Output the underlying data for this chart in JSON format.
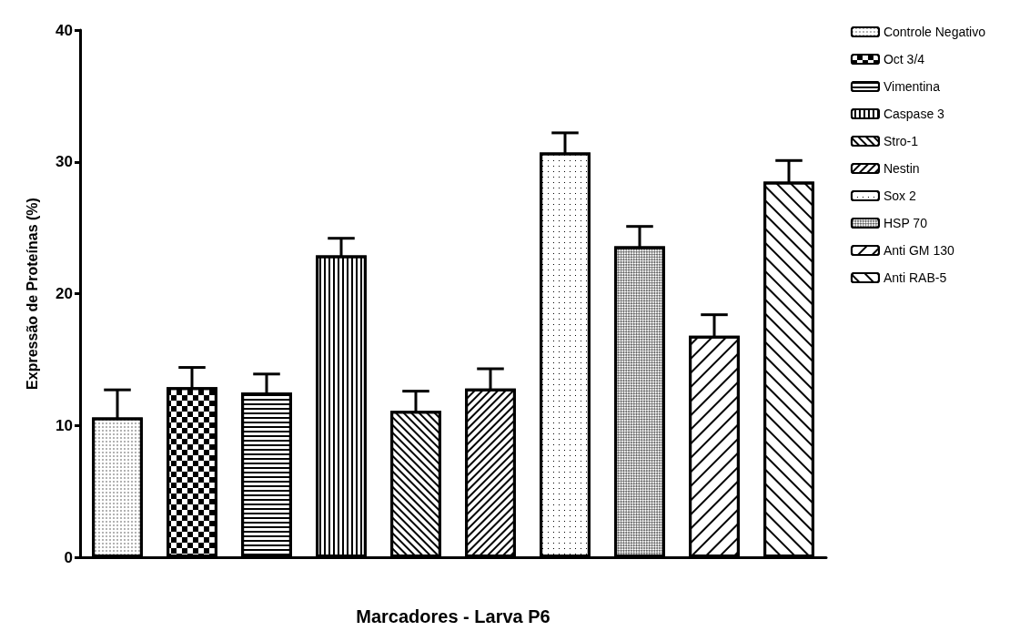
{
  "chart_data": {
    "type": "bar",
    "xlabel": "Marcadores - Larva P6",
    "ylabel": "Expressão de Proteínas (%)",
    "categories": [
      null,
      null,
      null,
      null,
      null,
      null,
      null,
      null,
      null,
      null
    ],
    "ylim": [
      0,
      40
    ],
    "yticks": [
      0,
      10,
      20,
      30,
      40
    ],
    "grid": false,
    "legend": "top right",
    "tick_labels": "y",
    "series": [
      {
        "name": "Controle Negativo",
        "color": "#ffffff",
        "values": [
          10.6,
          null,
          null,
          null,
          null,
          null,
          null,
          null,
          null,
          null
        ],
        "errors": [
          2.1,
          null,
          null,
          null,
          null,
          null,
          null,
          null,
          null,
          null
        ]
      },
      {
        "name": "Oct 3/4",
        "color": "#ffffff",
        "values": [
          null,
          12.9,
          null,
          null,
          null,
          null,
          null,
          null,
          null,
          null
        ],
        "errors": [
          null,
          1.5,
          null,
          null,
          null,
          null,
          null,
          null,
          null,
          null
        ]
      },
      {
        "name": "Vimentina",
        "color": "#ffffff",
        "values": [
          null,
          null,
          12.5,
          null,
          null,
          null,
          null,
          null,
          null,
          null
        ],
        "errors": [
          null,
          null,
          1.4,
          null,
          null,
          null,
          null,
          null,
          null,
          null
        ]
      },
      {
        "name": "Caspase 3",
        "color": "#ffffff",
        "values": [
          null,
          null,
          null,
          22.9,
          null,
          null,
          null,
          null,
          null,
          null
        ],
        "errors": [
          null,
          null,
          null,
          1.3,
          null,
          null,
          null,
          null,
          null,
          null
        ]
      },
      {
        "name": "Stro-1",
        "color": "#ffffff",
        "values": [
          null,
          null,
          null,
          null,
          11.1,
          null,
          null,
          null,
          null,
          null
        ],
        "errors": [
          null,
          null,
          null,
          null,
          1.5,
          null,
          null,
          null,
          null,
          null
        ]
      },
      {
        "name": "Nestin",
        "color": "#ffffff",
        "values": [
          null,
          null,
          null,
          null,
          null,
          12.8,
          null,
          null,
          null,
          null
        ],
        "errors": [
          null,
          null,
          null,
          null,
          null,
          1.5,
          null,
          null,
          null,
          null
        ]
      },
      {
        "name": "Sox 2",
        "color": "#ffffff",
        "values": [
          null,
          null,
          null,
          null,
          null,
          null,
          30.7,
          null,
          null,
          null
        ],
        "errors": [
          null,
          null,
          null,
          null,
          null,
          null,
          1.5,
          null,
          null,
          null
        ]
      },
      {
        "name": "HSP 70",
        "color": "#ffffff",
        "values": [
          null,
          null,
          null,
          null,
          null,
          null,
          null,
          23.6,
          null,
          null
        ],
        "errors": [
          null,
          null,
          null,
          null,
          null,
          null,
          null,
          1.5,
          null,
          null
        ]
      },
      {
        "name": "Anti GM 130",
        "color": "#ffffff",
        "values": [
          null,
          null,
          null,
          null,
          null,
          null,
          null,
          null,
          16.8,
          null
        ],
        "errors": [
          null,
          null,
          null,
          null,
          null,
          null,
          null,
          null,
          1.6,
          null
        ]
      },
      {
        "name": "Anti RAB-5",
        "color": "#ffffff",
        "values": [
          null,
          null,
          null,
          null,
          null,
          null,
          null,
          null,
          null,
          28.5
        ],
        "errors": [
          null,
          null,
          null,
          null,
          null,
          null,
          null,
          null,
          null,
          1.6
        ]
      }
    ]
  }
}
